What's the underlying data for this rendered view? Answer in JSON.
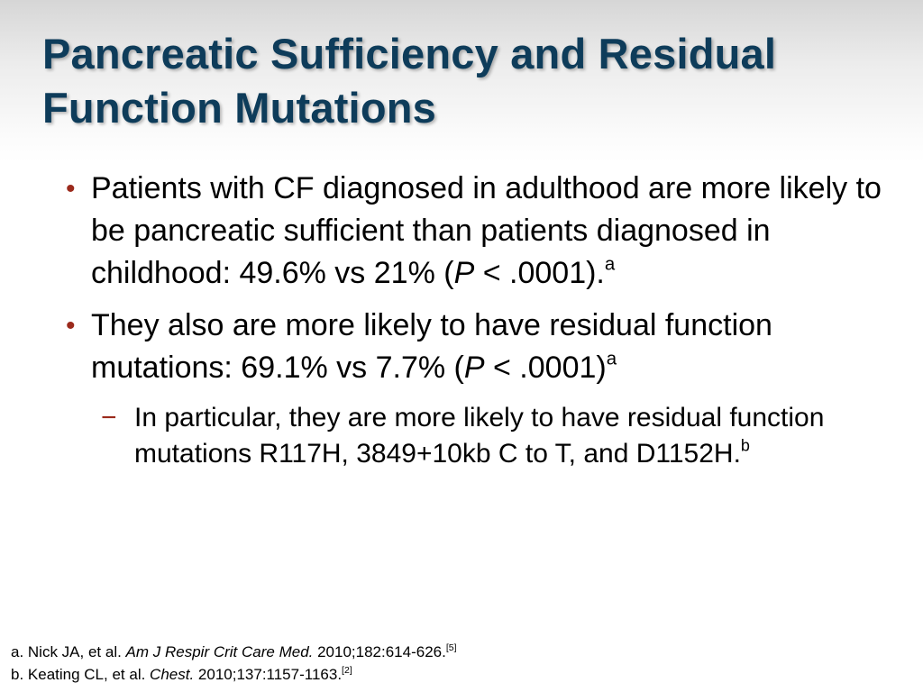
{
  "slide": {
    "title_line1": "Pancreatic Sufficiency and Residual",
    "title_line2": "Function Mutations",
    "bullet_marker": "•",
    "sub_marker": "−"
  },
  "bullets": [
    {
      "runs": [
        {
          "t": "Patients with CF diagnosed in adulthood are more likely to be pancreatic sufficient than patients diagnosed in childhood: 49.6% vs 21% (",
          "s": "normal"
        },
        {
          "t": "P",
          "s": "italic"
        },
        {
          "t": " < .0001).",
          "s": "normal"
        },
        {
          "t": "a",
          "s": "sup"
        }
      ]
    },
    {
      "runs": [
        {
          "t": "They also are more likely to have residual function mutations: 69.1% vs 7.7% (",
          "s": "normal"
        },
        {
          "t": "P",
          "s": "italic"
        },
        {
          "t": " < .0001)",
          "s": "normal"
        },
        {
          "t": "a",
          "s": "sup"
        }
      ]
    }
  ],
  "sub_bullets": [
    {
      "runs": [
        {
          "t": "In particular, they are more likely to have residual function mutations R117H, 3849+10kb C to T, and D1152H.",
          "s": "normal"
        },
        {
          "t": "b",
          "s": "sup"
        }
      ]
    }
  ],
  "references": [
    {
      "runs": [
        {
          "t": "a. Nick JA, et al. ",
          "s": "normal"
        },
        {
          "t": "Am J Respir Crit Care Med.",
          "s": "italic"
        },
        {
          "t": " 2010;182:614-626.",
          "s": "normal"
        },
        {
          "t": "[5]",
          "s": "sup"
        }
      ]
    },
    {
      "runs": [
        {
          "t": "b. Keating CL, et al. ",
          "s": "normal"
        },
        {
          "t": "Chest.",
          "s": "italic"
        },
        {
          "t": " 2010;137:1157-1163.",
          "s": "normal"
        },
        {
          "t": "[2]",
          "s": "sup"
        }
      ]
    }
  ],
  "colors": {
    "title": "#0e3c5a",
    "bullet_marker": "#9b2a1c",
    "body_text": "#000000"
  }
}
